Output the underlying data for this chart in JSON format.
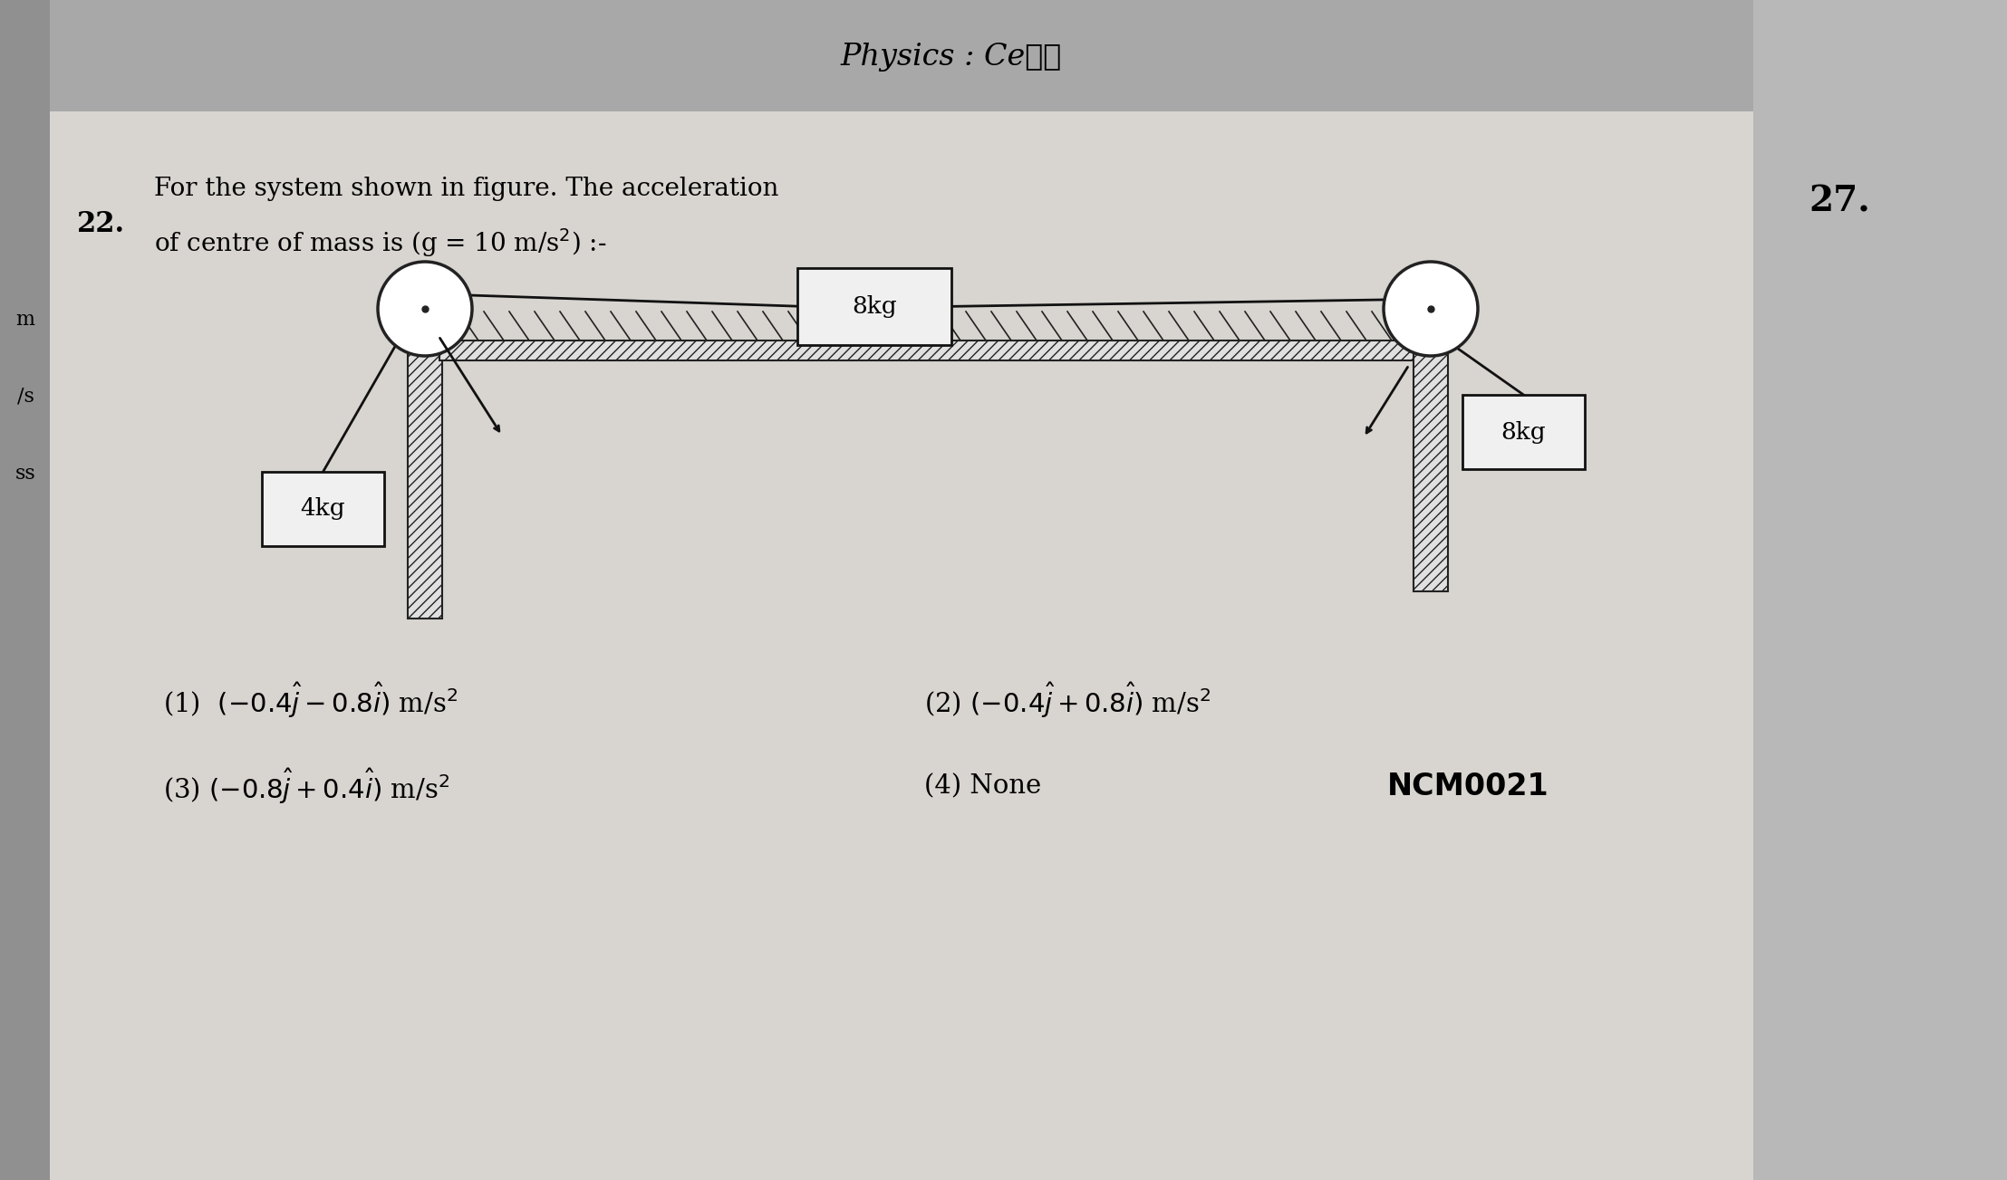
{
  "background_color": "#b0b0b0",
  "page_color": "#d8d4d0",
  "header_color": "#a8a8a8",
  "right_strip_color": "#b8b8b8",
  "left_strip_color": "#909090",
  "title_text": "Physics : Ceℓℓ",
  "question_number": "22.",
  "side_number": "27.",
  "ncm_code": "NCM0021",
  "mass_8kg_top": "8kg",
  "mass_4kg": "4kg",
  "mass_8kg_right": "8kg",
  "hatch_color": "#222222",
  "rope_color": "#111111",
  "pulley_color": "#222222",
  "box_facecolor": "#f0f0f0",
  "box_edgecolor": "#111111",
  "text_color": "#111111",
  "margin_labels": [
    "m",
    "/s",
    "ss"
  ],
  "opt1": "(1)  $(-0.4\\hat{j}-0.8\\hat{i})$ m/s$^2$",
  "opt2": "(2) $(-0.4\\hat{j}+0.8\\hat{i})$ m/s$^2$",
  "opt3": "(3) $(-0.8\\hat{j}+0.4\\hat{i})$ m/s$^2$",
  "opt4": "(4) None"
}
